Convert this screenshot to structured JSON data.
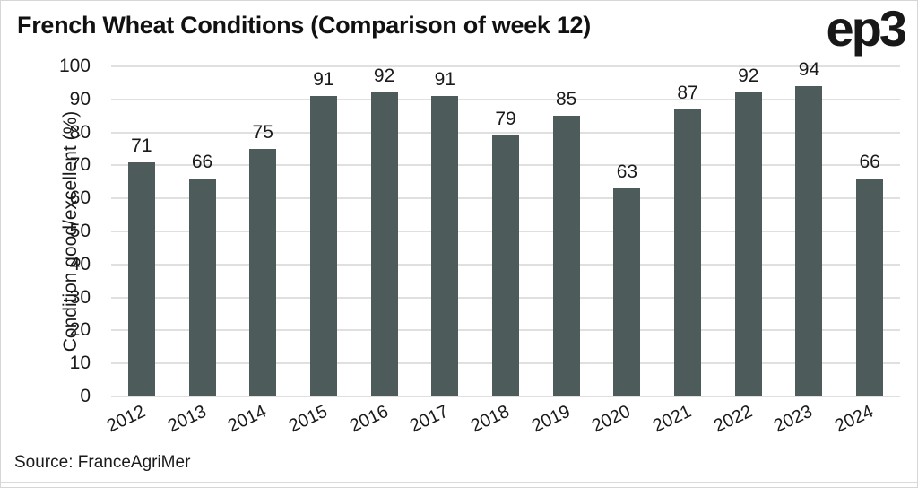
{
  "header": {
    "logo": "ep3"
  },
  "chart_data": {
    "type": "bar",
    "title": "French Wheat Conditions (Comparison of week 12)",
    "categories": [
      "2012",
      "2013",
      "2014",
      "2015",
      "2016",
      "2017",
      "2018",
      "2019",
      "2020",
      "2021",
      "2022",
      "2023",
      "2024"
    ],
    "values": [
      71,
      66,
      75,
      91,
      92,
      91,
      79,
      85,
      63,
      87,
      92,
      94,
      66
    ],
    "xlabel": "",
    "ylabel": "Condition good/excellent (%)",
    "ylim": [
      0,
      100
    ],
    "ytick_step": 10,
    "grid": "horizontal",
    "legend": "none",
    "bar_color": "#4d5c5a",
    "grid_color": "#e0e0e0",
    "source": "Source: FranceAgriMer"
  }
}
